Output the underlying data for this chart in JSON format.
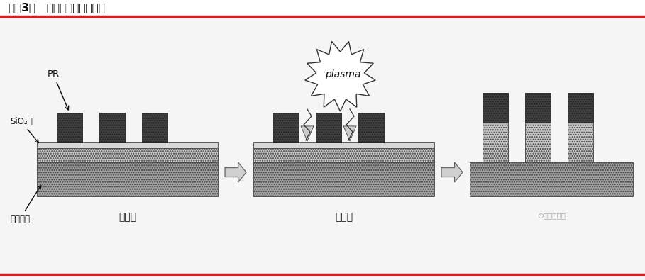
{
  "title": "图表3：   干法刻蚀流程示意图",
  "title_fontsize": 11,
  "bg_color": "#f5f5f5",
  "header_bar_color": "#cc2222",
  "bottom_bar_color": "#cc2222",
  "labels": {
    "PR": "PR",
    "SiO2": "SiO₂膜",
    "substrate": "硯片基底",
    "stage1": "刻蚀前",
    "stage2": "刻蚀中",
    "plasma": "plasma"
  },
  "colors": {
    "PR_block": "#404040",
    "sio2_thin": "#d8d8d8",
    "layer_mid": "#c5c5c5",
    "layer_bot": "#a0a0a0",
    "arrow_fill": "#d0d0d0",
    "arrow_edge": "#666666",
    "label_text": "#111111",
    "ann_arrow": "#111111",
    "starburst_edge": "#333333",
    "starburst_fill": "#ffffff"
  },
  "figsize": [
    9.09,
    3.95
  ],
  "dpi": 100
}
